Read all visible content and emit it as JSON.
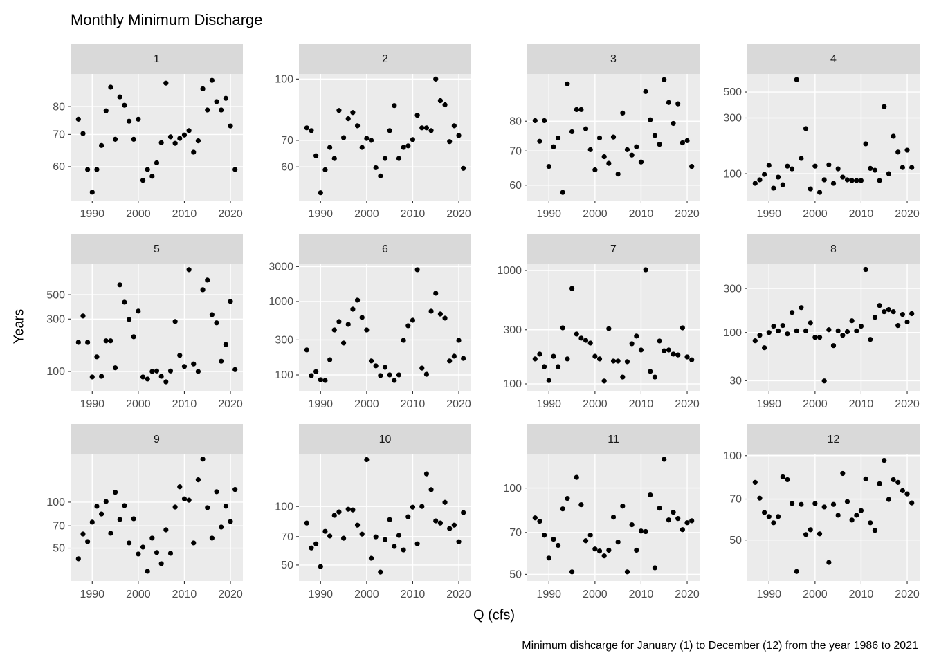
{
  "title": "Monthly Minimum Discharge",
  "xlabel": "Q (cfs)",
  "ylabel": "Years",
  "caption": "Minimum dishcarge for January (1) to December (12) from the year 1986 to 2021",
  "chart_data": [
    {
      "type": "scatter",
      "title": "1",
      "log_y": true,
      "grid": true,
      "color": "#000000",
      "x": [
        1987,
        1988,
        1989,
        1990,
        1991,
        1992,
        1993,
        1994,
        1995,
        1996,
        1997,
        1998,
        1999,
        2000,
        2001,
        2002,
        2003,
        2004,
        2005,
        2006,
        2007,
        2008,
        2009,
        2010,
        2011,
        2012,
        2013,
        2014,
        2015,
        2016,
        2017,
        2018,
        2019,
        2020,
        2021
      ],
      "values": [
        75.3,
        70.3,
        59.2,
        53.1,
        59.2,
        66.4,
        78.4,
        87.8,
        68.4,
        83.8,
        80.5,
        74.6,
        68.4,
        75.3,
        56.2,
        59.2,
        57.3,
        61.1,
        67.3,
        89.5,
        69.2,
        67.1,
        68.7,
        69.8,
        71.3,
        64.3,
        67.9,
        87.1,
        78.7,
        90.7,
        81.9,
        78.7,
        83.2,
        72.9,
        59.2
      ],
      "xlim": [
        1985.3,
        2022.7
      ],
      "xticks": [
        1990,
        2000,
        2010,
        2020
      ],
      "ylim": [
        51,
        93.5
      ],
      "yticks": [
        60,
        70,
        80
      ]
    },
    {
      "type": "scatter",
      "title": "2",
      "log_y": true,
      "grid": true,
      "color": "#000000",
      "x": [
        1987,
        1988,
        1989,
        1990,
        1991,
        1992,
        1993,
        1994,
        1995,
        1996,
        1997,
        1998,
        1999,
        2000,
        2001,
        2002,
        2003,
        2004,
        2005,
        2006,
        2007,
        2008,
        2009,
        2010,
        2011,
        2012,
        2013,
        2014,
        2015,
        2016,
        2017,
        2018,
        2019,
        2020,
        2021
      ],
      "values": [
        75.3,
        74.1,
        64.0,
        51.6,
        59.0,
        67.2,
        63.0,
        83.3,
        71.1,
        79.4,
        82.3,
        76.2,
        67.2,
        70.8,
        70.0,
        59.7,
        56.9,
        63.0,
        74.1,
        85.7,
        63.0,
        67.2,
        67.8,
        70.3,
        81.0,
        75.3,
        75.3,
        74.1,
        100,
        88.2,
        86.1,
        69.5,
        76.2,
        72.0,
        59.5
      ],
      "xlim": [
        1985.3,
        2022.7
      ],
      "xticks": [
        1990,
        2000,
        2010,
        2020
      ],
      "ylim": [
        49.3,
        103
      ],
      "yticks": [
        60,
        70,
        100
      ]
    },
    {
      "type": "scatter",
      "title": "3",
      "log_y": true,
      "grid": true,
      "color": "#000000",
      "x": [
        1987,
        1988,
        1989,
        1990,
        1991,
        1992,
        1993,
        1994,
        1995,
        1996,
        1997,
        1998,
        1999,
        2000,
        2001,
        2002,
        2003,
        2004,
        2005,
        2006,
        2007,
        2008,
        2009,
        2010,
        2011,
        2012,
        2013,
        2014,
        2015,
        2016,
        2017,
        2018,
        2019,
        2020,
        2021
      ],
      "values": [
        80.2,
        73.1,
        80.2,
        65.3,
        71.3,
        74.2,
        58.1,
        94.6,
        76.3,
        84.3,
        84.3,
        77.3,
        70.4,
        64.3,
        74.2,
        68.2,
        66.2,
        74.5,
        63.1,
        83.0,
        70.4,
        68.7,
        71.3,
        66.6,
        91.4,
        80.5,
        75.0,
        72.1,
        96.4,
        87.0,
        79.2,
        86.5,
        72.6,
        73.3,
        65.3
      ],
      "xlim": [
        1985.3,
        2022.7
      ],
      "xticks": [
        1990,
        2000,
        2010,
        2020
      ],
      "ylim": [
        56,
        98.9
      ],
      "yticks": [
        60,
        70,
        80
      ]
    },
    {
      "type": "scatter",
      "title": "4",
      "log_y": true,
      "grid": true,
      "color": "#000000",
      "x": [
        1987,
        1988,
        1989,
        1990,
        1991,
        1992,
        1993,
        1994,
        1995,
        1996,
        1997,
        1998,
        1999,
        2000,
        2001,
        2002,
        2003,
        2004,
        2005,
        2006,
        2007,
        2008,
        2009,
        2010,
        2011,
        2012,
        2013,
        2014,
        2015,
        2016,
        2017,
        2018,
        2019,
        2020,
        2021
      ],
      "values": [
        82.6,
        88.5,
        98.6,
        117.8,
        75.1,
        93.4,
        80.4,
        116,
        110,
        638,
        135,
        243,
        74.1,
        116,
        69.2,
        88.5,
        119,
        82.6,
        110,
        93.4,
        88.5,
        87.3,
        87.3,
        87.3,
        180,
        111,
        107,
        87.3,
        375,
        100,
        209,
        153,
        113,
        159,
        113
      ],
      "xlim": [
        1985.3,
        2022.7
      ],
      "xticks": [
        1990,
        2000,
        2010,
        2020
      ],
      "ylim": [
        58.8,
        713
      ],
      "yticks": [
        100,
        300,
        500
      ]
    },
    {
      "type": "scatter",
      "title": "5",
      "log_y": true,
      "grid": true,
      "color": "#000000",
      "x": [
        1987,
        1988,
        1989,
        1990,
        1991,
        1992,
        1993,
        1994,
        1995,
        1996,
        1997,
        1998,
        1999,
        2000,
        2001,
        2002,
        2003,
        2004,
        2005,
        2006,
        2007,
        2008,
        2009,
        2010,
        2011,
        2012,
        2013,
        2014,
        2015,
        2016,
        2017,
        2018,
        2019,
        2020,
        2021
      ],
      "values": [
        184,
        320,
        184,
        89.1,
        136,
        90.3,
        190,
        190,
        108,
        615,
        427,
        297,
        207,
        354,
        89.1,
        85.3,
        100,
        101,
        90.3,
        80.4,
        101,
        285,
        140,
        111,
        846,
        117,
        100,
        555,
        680,
        329,
        277,
        124,
        176,
        434,
        104
      ],
      "xlim": [
        1985.3,
        2022.7
      ],
      "xticks": [
        1990,
        2000,
        2010,
        2020
      ],
      "ylim": [
        66.6,
        948
      ],
      "yticks": [
        100,
        300,
        500
      ]
    },
    {
      "type": "scatter",
      "title": "6",
      "log_y": true,
      "grid": true,
      "color": "#000000",
      "x": [
        1987,
        1988,
        1989,
        1990,
        1991,
        1992,
        1993,
        1994,
        1995,
        1996,
        1997,
        1998,
        1999,
        2000,
        2001,
        2002,
        2003,
        2004,
        2005,
        2006,
        2007,
        2008,
        2009,
        2010,
        2011,
        2012,
        2013,
        2014,
        2015,
        2016,
        2017,
        2018,
        2019,
        2020,
        2021
      ],
      "values": [
        219,
        98,
        111,
        86,
        84,
        161,
        410,
        532,
        272,
        489,
        787,
        1045,
        607,
        410,
        155,
        133,
        98,
        127,
        100,
        84,
        100,
        296,
        468,
        556,
        2716,
        124,
        102,
        738,
        1298,
        676,
        594,
        155,
        180,
        296,
        168
      ],
      "xlim": [
        1985.3,
        2022.7
      ],
      "xticks": [
        1990,
        2000,
        2010,
        2020
      ],
      "ylim": [
        60.7,
        3228
      ],
      "yticks": [
        100,
        300,
        1000,
        3000
      ]
    },
    {
      "type": "scatter",
      "title": "7",
      "log_y": true,
      "grid": true,
      "color": "#000000",
      "x": [
        1987,
        1988,
        1989,
        1990,
        1991,
        1992,
        1993,
        1994,
        1995,
        1996,
        1997,
        1998,
        1999,
        2000,
        2001,
        2002,
        2003,
        2004,
        2005,
        2006,
        2007,
        2008,
        2009,
        2010,
        2011,
        2012,
        2013,
        2014,
        2015,
        2016,
        2017,
        2018,
        2019,
        2020,
        2021
      ],
      "values": [
        166,
        183,
        142,
        107,
        175,
        142,
        312,
        166,
        694,
        275,
        253,
        242,
        229,
        175,
        166,
        106,
        307,
        159,
        159,
        115,
        157,
        226,
        264,
        199,
        1014,
        129,
        115,
        239,
        196,
        199,
        183,
        180,
        312,
        173,
        163
      ],
      "xlim": [
        1985.3,
        2022.7
      ],
      "xticks": [
        1990,
        2000,
        2010,
        2020
      ],
      "ylim": [
        86.9,
        1135
      ],
      "yticks": [
        100,
        300,
        1000
      ]
    },
    {
      "type": "scatter",
      "title": "8",
      "log_y": true,
      "grid": true,
      "color": "#000000",
      "x": [
        1987,
        1988,
        1989,
        1990,
        1991,
        1992,
        1993,
        1994,
        1995,
        1996,
        1997,
        1998,
        1999,
        2000,
        2001,
        2002,
        2003,
        2004,
        2005,
        2006,
        2007,
        2008,
        2009,
        2010,
        2011,
        2012,
        2013,
        2014,
        2015,
        2016,
        2017,
        2018,
        2019,
        2020,
        2021
      ],
      "values": [
        81.3,
        93.3,
        68.4,
        100,
        117,
        104,
        119,
        96.6,
        165,
        104,
        186,
        104,
        127,
        88.6,
        88.6,
        29.8,
        107,
        72.0,
        104,
        93.3,
        102,
        134,
        104,
        117,
        483,
        84.1,
        146,
        196,
        168,
        177,
        168,
        119,
        157,
        130,
        160
      ],
      "xlim": [
        1985.3,
        2022.7
      ],
      "xticks": [
        1990,
        2000,
        2010,
        2020
      ],
      "ylim": [
        23.3,
        550
      ],
      "yticks": [
        30,
        100,
        300
      ]
    },
    {
      "type": "scatter",
      "title": "9",
      "log_y": true,
      "grid": true,
      "color": "#000000",
      "x": [
        1987,
        1988,
        1989,
        1990,
        1991,
        1992,
        1993,
        1994,
        1995,
        1996,
        1997,
        1998,
        1999,
        2000,
        2001,
        2002,
        2003,
        2004,
        2005,
        2006,
        2007,
        2008,
        2009,
        2010,
        2011,
        2012,
        2013,
        2014,
        2015,
        2016,
        2017,
        2018,
        2019,
        2020,
        2021
      ],
      "values": [
        42.6,
        61.9,
        55.2,
        74.0,
        94.0,
        83.7,
        101,
        62.6,
        116,
        77.1,
        94.9,
        54.1,
        77.9,
        45.8,
        50.8,
        35.3,
        58.2,
        46.8,
        39.6,
        65.9,
        46.3,
        92.9,
        126,
        105,
        103,
        54.1,
        140,
        191,
        92.0,
        58.2,
        117,
        68.7,
        94.0,
        74.7,
        121
      ],
      "xlim": [
        1985.3,
        2022.7
      ],
      "xticks": [
        1990,
        2000,
        2010,
        2020
      ],
      "ylim": [
        30.5,
        205
      ],
      "yticks": [
        50,
        70,
        100
      ]
    },
    {
      "type": "scatter",
      "title": "10",
      "log_y": true,
      "grid": true,
      "color": "#000000",
      "x": [
        1987,
        1988,
        1989,
        1990,
        1991,
        1992,
        1993,
        1994,
        1995,
        1996,
        1997,
        1998,
        1999,
        2000,
        2001,
        2002,
        2003,
        2004,
        2005,
        2006,
        2007,
        2008,
        2009,
        2010,
        2011,
        2012,
        2013,
        2014,
        2015,
        2016,
        2017,
        2018,
        2019,
        2020,
        2021
      ],
      "values": [
        82.2,
        61.2,
        64.3,
        49.1,
        74.5,
        70.5,
        90.0,
        93.7,
        68.7,
        96.8,
        96.0,
        80.2,
        72.1,
        174,
        54.2,
        69.8,
        46.0,
        67.6,
        85.6,
        62.3,
        71.0,
        59.8,
        88.5,
        99.2,
        64.3,
        100,
        147,
        122,
        84.3,
        82.2,
        105,
        77.0,
        80.2,
        65.9,
        93.0
      ],
      "xlim": [
        1985.3,
        2022.7
      ],
      "xticks": [
        1990,
        2000,
        2010,
        2020
      ],
      "ylim": [
        41.4,
        185
      ],
      "yticks": [
        50,
        70,
        100
      ]
    },
    {
      "type": "scatter",
      "title": "11",
      "log_y": true,
      "grid": true,
      "color": "#000000",
      "x": [
        1987,
        1988,
        1989,
        1990,
        1991,
        1992,
        1993,
        1994,
        1995,
        1996,
        1997,
        1998,
        1999,
        2000,
        2001,
        2002,
        2003,
        2004,
        2005,
        2006,
        2007,
        2008,
        2009,
        2010,
        2011,
        2012,
        2013,
        2014,
        2015,
        2016,
        2017,
        2018,
        2019,
        2020,
        2021
      ],
      "values": [
        78.7,
        76.6,
        68.5,
        57.0,
        66.3,
        63.1,
        84.6,
        92.0,
        51.0,
        109,
        87.5,
        65.5,
        68.5,
        61.3,
        60.3,
        58.0,
        60.7,
        79.2,
        64.8,
        86.5,
        51.0,
        74.5,
        60.7,
        70.8,
        70.5,
        94.6,
        52.7,
        85.1,
        126,
        77.4,
        82.3,
        78.3,
        71.6,
        75.7,
        76.9
      ],
      "xlim": [
        1985.3,
        2022.7
      ],
      "xticks": [
        1990,
        2000,
        2010,
        2020
      ],
      "ylim": [
        47.4,
        131
      ],
      "yticks": [
        50,
        70,
        100
      ]
    },
    {
      "type": "scatter",
      "title": "12",
      "log_y": true,
      "grid": true,
      "color": "#000000",
      "x": [
        1987,
        1988,
        1989,
        1990,
        1991,
        1992,
        1993,
        1994,
        1995,
        1996,
        1997,
        1998,
        1999,
        2000,
        2001,
        2002,
        2003,
        2004,
        2005,
        2006,
        2007,
        2008,
        2009,
        2010,
        2011,
        2012,
        2013,
        2014,
        2015,
        2016,
        2017,
        2018,
        2019,
        2020,
        2021
      ],
      "values": [
        80.3,
        70.5,
        62.7,
        60.6,
        57.6,
        60.6,
        84.0,
        82.1,
        67.5,
        38.6,
        67.0,
        52.3,
        54.4,
        67.5,
        52.6,
        65.6,
        41.6,
        67.0,
        61.3,
        86.4,
        68.6,
        58.9,
        61.3,
        63.7,
        82.6,
        57.6,
        54.1,
        79.4,
        96.2,
        69.8,
        82.1,
        80.3,
        75.0,
        73.0,
        67.8
      ],
      "xlim": [
        1985.3,
        2022.7
      ],
      "xticks": [
        1990,
        2000,
        2010,
        2020
      ],
      "ylim": [
        35.7,
        101
      ],
      "yticks": [
        50,
        70,
        100
      ]
    }
  ]
}
